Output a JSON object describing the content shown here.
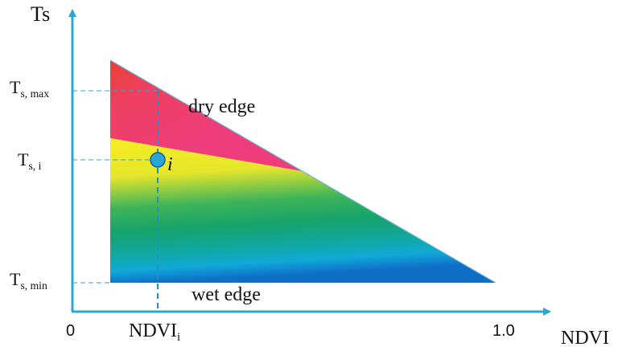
{
  "y_axis": {
    "title": "Ts"
  },
  "x_axis": {
    "title": "NDVI",
    "min_label": "0",
    "max_label": "1.0"
  },
  "ts_max": {
    "main": "T",
    "sub": "s, max"
  },
  "ts_i": {
    "main": "T",
    "sub": "s, i"
  },
  "ts_min": {
    "main": "T",
    "sub": "s, min"
  },
  "ndvi_i": {
    "main": "NDVI",
    "sub": "i"
  },
  "dry_edge_label": "dry edge",
  "wet_edge_label": "wet edge",
  "point_label": "i",
  "colors": {
    "axis": "#29a6d6",
    "red": "#e8413c",
    "magenta": "#ef3d7c",
    "yellow": "#f4ec23",
    "green": "#19a568",
    "teal": "#10a89a",
    "cyan": "#11a9d9",
    "blue": "#0f6fc7",
    "point_fill": "#29a6d6"
  }
}
